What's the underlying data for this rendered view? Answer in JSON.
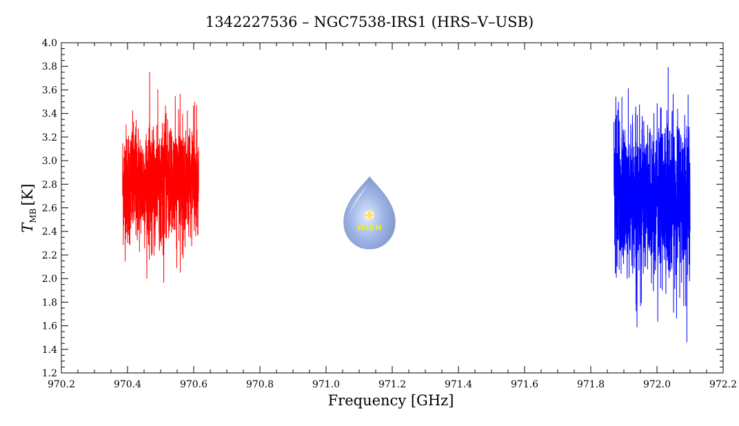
{
  "chart_data": {
    "type": "line",
    "title": "1342227536 – NGC7538-IRS1 (HRS–V–USB)",
    "xlabel": "Frequency [GHz]",
    "ylabel": "T",
    "ylabel_sub": "MB",
    "ylabel_unit": "[K]",
    "xlim": [
      970.2,
      972.2
    ],
    "ylim": [
      1.2,
      4.0
    ],
    "x_ticks": [
      "970.2",
      "970.4",
      "970.6",
      "970.8",
      "971.0",
      "971.2",
      "971.4",
      "971.6",
      "971.8",
      "972.0",
      "972.2"
    ],
    "y_ticks": [
      "1.2",
      "1.4",
      "1.6",
      "1.8",
      "2.0",
      "2.2",
      "2.4",
      "2.6",
      "2.8",
      "3.0",
      "3.2",
      "3.4",
      "3.6",
      "3.8",
      "4.0"
    ],
    "grid": false,
    "series": [
      {
        "color": "#ff0000",
        "x_start": 970.385,
        "x_end": 970.615,
        "mean": 2.8,
        "noise_sigma": 0.25,
        "y_min": 1.95,
        "y_max": 3.83
      },
      {
        "color": "#0000ff",
        "x_start": 971.87,
        "x_end": 972.1,
        "mean": 2.7,
        "noise_sigma": 0.33,
        "y_min": 1.45,
        "y_max": 3.83
      }
    ],
    "logo": {
      "text": "WISH"
    }
  }
}
